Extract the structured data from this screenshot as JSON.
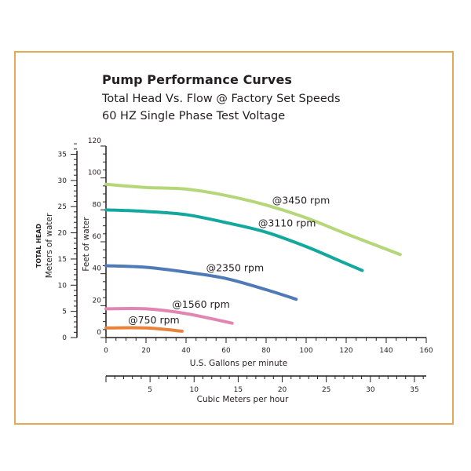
{
  "chart_data": {
    "type": "line",
    "title": "Pump Performance Curves",
    "subtitle_lines": [
      "Total Head Vs. Flow @ Factory Set Speeds",
      "60 HZ Single Phase Test Voltage"
    ],
    "xlabel": "U.S. Gallons per minute",
    "ylabel": "Feet of water",
    "left_axis_label_bold": "TOTAL HEAD",
    "left_axis_label": "Meters of water",
    "xlabel_secondary": "Cubic Meters per hour",
    "xlim": [
      0,
      160
    ],
    "ylim": [
      0,
      120
    ],
    "x_ticks": [
      "0",
      "20",
      "40",
      "60",
      "80",
      "100",
      "120",
      "140",
      "160"
    ],
    "y_ticks": [
      "0",
      "20",
      "40",
      "60",
      "80",
      "100",
      "120"
    ],
    "meters_ticks": [
      "0",
      "5",
      "10",
      "15",
      "20",
      "25",
      "30",
      "35"
    ],
    "cubic_ticks": [
      "5",
      "10",
      "15",
      "20",
      "25",
      "30",
      "35"
    ],
    "series": [
      {
        "name": "@3450 rpm",
        "color": "#b5d77a",
        "x": [
          0,
          20,
          40,
          60,
          80,
          100,
          120,
          147
        ],
        "y": [
          96,
          94,
          93,
          89,
          83,
          75,
          65,
          52
        ]
      },
      {
        "name": "@3110 rpm",
        "color": "#13a89e",
        "x": [
          0,
          20,
          40,
          60,
          80,
          100,
          115,
          128
        ],
        "y": [
          80,
          79,
          77,
          72,
          66,
          57,
          49,
          42
        ]
      },
      {
        "name": "@2350 rpm",
        "color": "#4e7ab8",
        "x": [
          0,
          20,
          40,
          60,
          80,
          95
        ],
        "y": [
          45,
          44,
          41,
          37,
          30,
          24
        ]
      },
      {
        "name": "@1560 rpm",
        "color": "#e285b3",
        "x": [
          0,
          20,
          40,
          63
        ],
        "y": [
          18,
          18,
          15,
          9
        ]
      },
      {
        "name": "@750 rpm",
        "color": "#e9823a",
        "x": [
          0,
          20,
          38
        ],
        "y": [
          6,
          6,
          4
        ]
      }
    ]
  }
}
